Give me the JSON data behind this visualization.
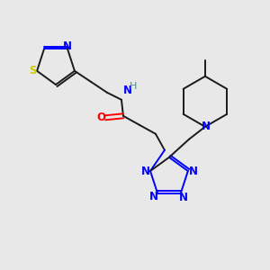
{
  "background_color": "#e8e8e8",
  "fig_width": 3.0,
  "fig_height": 3.0,
  "dpi": 100,
  "atom_colors": {
    "N": "#0000ff",
    "O": "#ff0000",
    "S": "#cccc00",
    "C": "#1a1a1a",
    "H_label": "#4a8f8f"
  },
  "bond_color": "#1a1a1a",
  "bond_width": 1.4
}
